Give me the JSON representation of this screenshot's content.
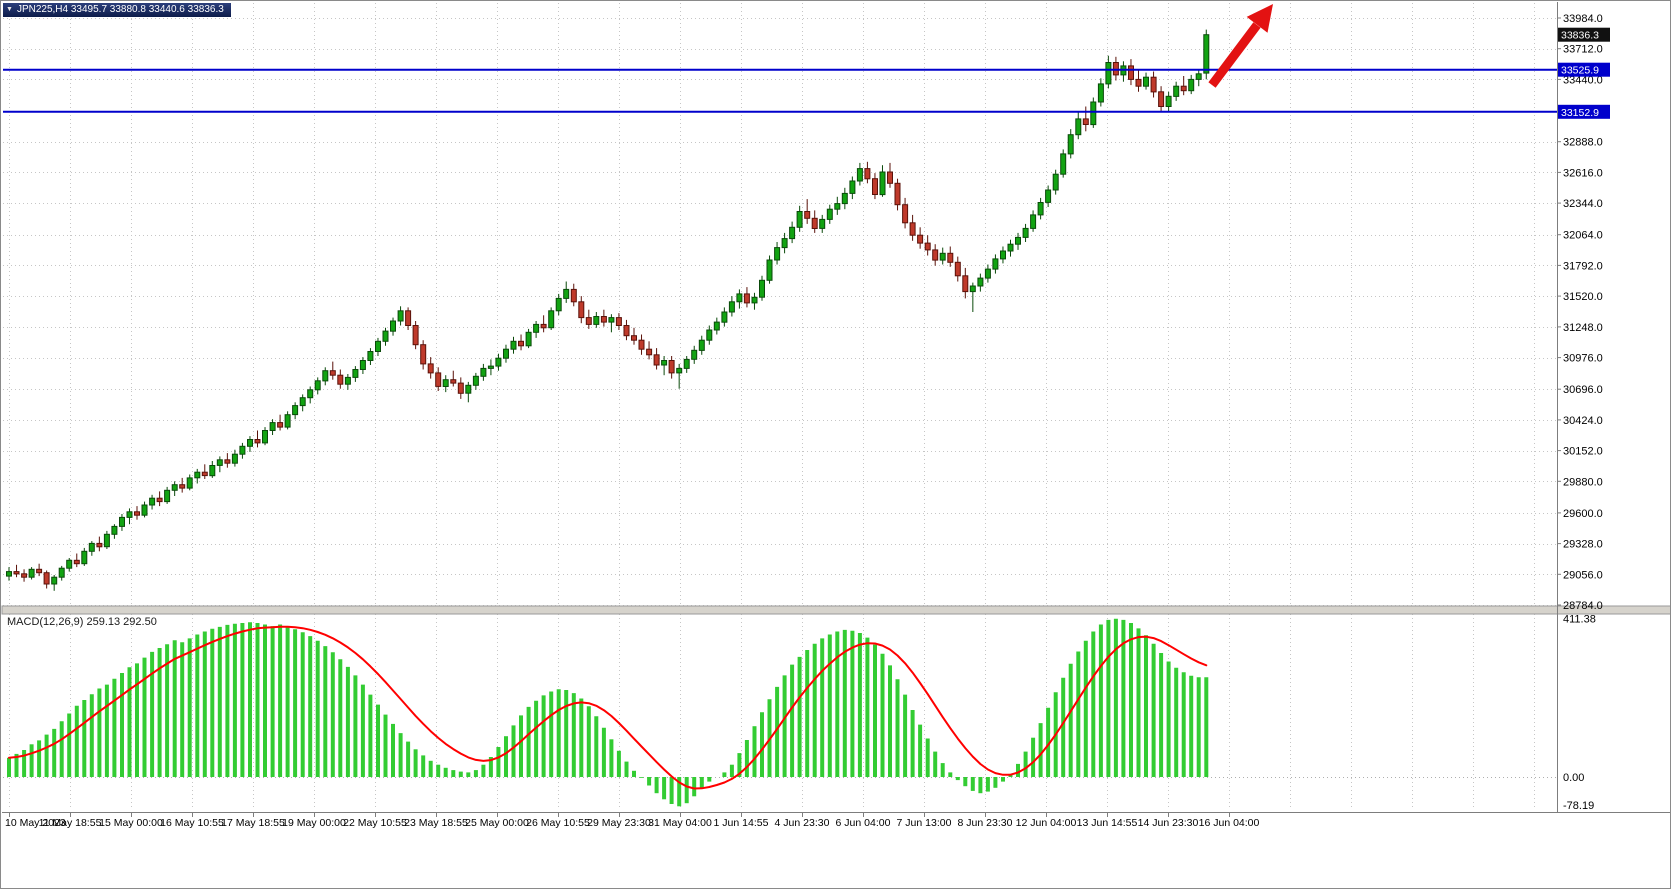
{
  "window": {
    "title": "JPN225,H4 33495.7 33880.8 33440.6 33836.3",
    "symbol": "JPN225,H4",
    "ohlc": {
      "open": "33495.7",
      "high": "33880.8",
      "low": "33440.6",
      "close": "33836.3"
    }
  },
  "colors": {
    "up": "#12a312",
    "up_border": "#0a4a0a",
    "down": "#bf3a2b",
    "down_border": "#5a120a",
    "grid": "#c6c6c6",
    "hline": "#0000cc",
    "macd_hist": "#33cc33",
    "macd_signal": "#ff0000",
    "tag_current_bg": "#111111",
    "tag_line_bg": "#0000cc",
    "arrow": "#e31212"
  },
  "chart_data": {
    "type": "candlestick",
    "title": "JPN225,H4",
    "timeframe": "H4",
    "grid": true,
    "price_axis_range": [
      28784.0,
      33984.0
    ],
    "price_axis_labels": [
      "33984.0",
      "33712.0",
      "33440.0",
      "32888.0",
      "32616.0",
      "32344.0",
      "32064.0",
      "31792.0",
      "31520.0",
      "31248.0",
      "30976.0",
      "30696.0",
      "30424.0",
      "30152.0",
      "29880.0",
      "29600.0",
      "29328.0",
      "29056.0",
      "28784.0"
    ],
    "unlabeled_gridlines": [
      33164
    ],
    "time_labels": [
      "10 May 2023",
      "11 May 18:55",
      "15 May 00:00",
      "16 May 10:55",
      "17 May 18:55",
      "19 May 00:00",
      "22 May 10:55",
      "23 May 18:55",
      "25 May 00:00",
      "26 May 10:55",
      "29 May 23:30",
      "31 May 04:00",
      "1 Jun 14:55",
      "4 Jun 23:30",
      "6 Jun 04:00",
      "7 Jun 13:00",
      "8 Jun 23:30",
      "12 Jun 04:00",
      "13 Jun 14:55",
      "14 Jun 23:30",
      "16 Jun 04:00"
    ],
    "bars_per_label": 8,
    "hlines": [
      {
        "price": 33525.9,
        "label": "33525.9"
      },
      {
        "price": 33152.9,
        "label": "33152.9"
      }
    ],
    "current_price": {
      "value": 33836.3,
      "label": "33836.3"
    },
    "annotation_arrow": {
      "type": "up-right-arrow",
      "color": "#e31212"
    },
    "candles": [
      [
        29040,
        29120,
        29000,
        29080
      ],
      [
        29080,
        29140,
        29030,
        29060
      ],
      [
        29060,
        29100,
        28990,
        29030
      ],
      [
        29030,
        29120,
        29010,
        29100
      ],
      [
        29100,
        29150,
        29040,
        29070
      ],
      [
        29070,
        29090,
        28930,
        28970
      ],
      [
        28970,
        29050,
        28910,
        29030
      ],
      [
        29030,
        29130,
        29000,
        29110
      ],
      [
        29110,
        29200,
        29080,
        29180
      ],
      [
        29180,
        29240,
        29120,
        29150
      ],
      [
        29150,
        29290,
        29130,
        29260
      ],
      [
        29260,
        29350,
        29220,
        29330
      ],
      [
        29330,
        29390,
        29260,
        29300
      ],
      [
        29300,
        29440,
        29280,
        29410
      ],
      [
        29410,
        29500,
        29370,
        29480
      ],
      [
        29480,
        29590,
        29440,
        29560
      ],
      [
        29560,
        29640,
        29500,
        29610
      ],
      [
        29610,
        29660,
        29540,
        29580
      ],
      [
        29580,
        29700,
        29560,
        29670
      ],
      [
        29670,
        29760,
        29630,
        29730
      ],
      [
        29730,
        29790,
        29660,
        29700
      ],
      [
        29700,
        29830,
        29680,
        29800
      ],
      [
        29800,
        29880,
        29750,
        29850
      ],
      [
        29850,
        29910,
        29780,
        29820
      ],
      [
        29820,
        29940,
        29800,
        29910
      ],
      [
        29910,
        29990,
        29860,
        29960
      ],
      [
        29960,
        30030,
        29900,
        29930
      ],
      [
        29930,
        30060,
        29910,
        30020
      ],
      [
        30020,
        30100,
        29960,
        30070
      ],
      [
        30070,
        30130,
        30000,
        30040
      ],
      [
        30040,
        30160,
        30010,
        30120
      ],
      [
        30120,
        30220,
        30080,
        30190
      ],
      [
        30190,
        30280,
        30140,
        30250
      ],
      [
        30250,
        30330,
        30180,
        30220
      ],
      [
        30220,
        30360,
        30200,
        30330
      ],
      [
        30330,
        30430,
        30290,
        30400
      ],
      [
        30400,
        30470,
        30330,
        30360
      ],
      [
        30360,
        30500,
        30340,
        30470
      ],
      [
        30470,
        30580,
        30430,
        30550
      ],
      [
        30550,
        30650,
        30500,
        30620
      ],
      [
        30620,
        30720,
        30570,
        30690
      ],
      [
        30690,
        30800,
        30650,
        30770
      ],
      [
        30770,
        30890,
        30730,
        30860
      ],
      [
        30860,
        30940,
        30780,
        30820
      ],
      [
        30820,
        30870,
        30700,
        30740
      ],
      [
        30740,
        30830,
        30690,
        30800
      ],
      [
        30800,
        30900,
        30760,
        30870
      ],
      [
        30870,
        30980,
        30830,
        30950
      ],
      [
        30950,
        31060,
        30910,
        31030
      ],
      [
        31030,
        31150,
        30990,
        31120
      ],
      [
        31120,
        31240,
        31080,
        31210
      ],
      [
        31210,
        31330,
        31170,
        31300
      ],
      [
        31300,
        31430,
        31260,
        31390
      ],
      [
        31390,
        31420,
        31220,
        31260
      ],
      [
        31260,
        31300,
        31050,
        31090
      ],
      [
        31090,
        31130,
        30870,
        30920
      ],
      [
        30920,
        30980,
        30790,
        30840
      ],
      [
        30840,
        30890,
        30680,
        30720
      ],
      [
        30720,
        30820,
        30670,
        30780
      ],
      [
        30780,
        30860,
        30720,
        30750
      ],
      [
        30750,
        30800,
        30610,
        30660
      ],
      [
        30660,
        30760,
        30580,
        30730
      ],
      [
        30730,
        30840,
        30690,
        30810
      ],
      [
        30810,
        30920,
        30770,
        30880
      ],
      [
        30880,
        30960,
        30820,
        30900
      ],
      [
        30900,
        31010,
        30860,
        30970
      ],
      [
        30970,
        31090,
        30930,
        31050
      ],
      [
        31050,
        31160,
        31010,
        31120
      ],
      [
        31120,
        31180,
        31040,
        31080
      ],
      [
        31080,
        31230,
        31060,
        31200
      ],
      [
        31200,
        31300,
        31150,
        31270
      ],
      [
        31270,
        31350,
        31200,
        31240
      ],
      [
        31240,
        31420,
        31220,
        31390
      ],
      [
        31390,
        31540,
        31350,
        31500
      ],
      [
        31500,
        31650,
        31460,
        31580
      ],
      [
        31580,
        31630,
        31430,
        31470
      ],
      [
        31470,
        31520,
        31280,
        31330
      ],
      [
        31330,
        31400,
        31230,
        31270
      ],
      [
        31270,
        31380,
        31240,
        31340
      ],
      [
        31340,
        31400,
        31250,
        31290
      ],
      [
        31290,
        31360,
        31200,
        31330
      ],
      [
        31330,
        31370,
        31220,
        31260
      ],
      [
        31260,
        31310,
        31130,
        31170
      ],
      [
        31170,
        31240,
        31090,
        31130
      ],
      [
        31130,
        31180,
        31000,
        31050
      ],
      [
        31050,
        31120,
        30960,
        31000
      ],
      [
        31000,
        31060,
        30870,
        30910
      ],
      [
        30910,
        30990,
        30820,
        30950
      ],
      [
        30950,
        30990,
        30790,
        30840
      ],
      [
        30840,
        30920,
        30700,
        30880
      ],
      [
        30880,
        30990,
        30840,
        30960
      ],
      [
        30960,
        31080,
        30920,
        31040
      ],
      [
        31040,
        31170,
        31000,
        31130
      ],
      [
        31130,
        31260,
        31090,
        31220
      ],
      [
        31220,
        31330,
        31180,
        31290
      ],
      [
        31290,
        31420,
        31250,
        31380
      ],
      [
        31380,
        31520,
        31340,
        31470
      ],
      [
        31470,
        31580,
        31410,
        31540
      ],
      [
        31540,
        31600,
        31420,
        31460
      ],
      [
        31460,
        31550,
        31400,
        31510
      ],
      [
        31510,
        31700,
        31480,
        31660
      ],
      [
        31660,
        31880,
        31630,
        31840
      ],
      [
        31840,
        32000,
        31800,
        31950
      ],
      [
        31950,
        32080,
        31900,
        32030
      ],
      [
        32030,
        32180,
        31990,
        32130
      ],
      [
        32130,
        32320,
        32090,
        32270
      ],
      [
        32270,
        32380,
        32160,
        32210
      ],
      [
        32210,
        32280,
        32080,
        32120
      ],
      [
        32120,
        32240,
        32080,
        32200
      ],
      [
        32200,
        32330,
        32160,
        32290
      ],
      [
        32290,
        32400,
        32240,
        32340
      ],
      [
        32340,
        32480,
        32290,
        32430
      ],
      [
        32430,
        32580,
        32380,
        32540
      ],
      [
        32540,
        32700,
        32500,
        32650
      ],
      [
        32650,
        32710,
        32520,
        32560
      ],
      [
        32560,
        32610,
        32380,
        32420
      ],
      [
        32420,
        32680,
        32400,
        32620
      ],
      [
        32620,
        32700,
        32480,
        32520
      ],
      [
        32520,
        32560,
        32280,
        32330
      ],
      [
        32330,
        32390,
        32120,
        32170
      ],
      [
        32170,
        32240,
        32010,
        32060
      ],
      [
        32060,
        32130,
        31940,
        31990
      ],
      [
        31990,
        32060,
        31880,
        31930
      ],
      [
        31930,
        31980,
        31790,
        31840
      ],
      [
        31840,
        31950,
        31800,
        31900
      ],
      [
        31900,
        31960,
        31780,
        31820
      ],
      [
        31820,
        31870,
        31650,
        31700
      ],
      [
        31700,
        31770,
        31500,
        31560
      ],
      [
        31560,
        31640,
        31380,
        31610
      ],
      [
        31610,
        31720,
        31560,
        31680
      ],
      [
        31680,
        31800,
        31640,
        31760
      ],
      [
        31760,
        31890,
        31720,
        31850
      ],
      [
        31850,
        31960,
        31810,
        31920
      ],
      [
        31920,
        32020,
        31870,
        31980
      ],
      [
        31980,
        32080,
        31930,
        32040
      ],
      [
        32040,
        32160,
        32000,
        32120
      ],
      [
        32120,
        32280,
        32090,
        32240
      ],
      [
        32240,
        32390,
        32200,
        32350
      ],
      [
        32350,
        32500,
        32310,
        32460
      ],
      [
        32460,
        32640,
        32420,
        32600
      ],
      [
        32600,
        32820,
        32570,
        32780
      ],
      [
        32780,
        33000,
        32740,
        32950
      ],
      [
        32950,
        33150,
        32910,
        33090
      ],
      [
        33090,
        33200,
        32980,
        33040
      ],
      [
        33040,
        33280,
        33010,
        33240
      ],
      [
        33240,
        33450,
        33200,
        33400
      ],
      [
        33400,
        33650,
        33360,
        33590
      ],
      [
        33590,
        33640,
        33430,
        33480
      ],
      [
        33480,
        33600,
        33420,
        33560
      ],
      [
        33560,
        33620,
        33390,
        33440
      ],
      [
        33440,
        33530,
        33330,
        33380
      ],
      [
        33380,
        33500,
        33350,
        33460
      ],
      [
        33460,
        33510,
        33280,
        33330
      ],
      [
        33330,
        33380,
        33150,
        33200
      ],
      [
        33200,
        33330,
        33160,
        33290
      ],
      [
        33290,
        33420,
        33250,
        33380
      ],
      [
        33380,
        33470,
        33300,
        33340
      ],
      [
        33340,
        33480,
        33310,
        33440
      ],
      [
        33440,
        33530,
        33380,
        33490
      ],
      [
        33495.7,
        33880.8,
        33440.6,
        33836.3
      ]
    ],
    "macd": {
      "label": "MACD(12,26,9) 259.13 292.50",
      "main_value": "259.13",
      "signal_value": "292.50",
      "signal_period": 9,
      "axis_labels": [
        "411.38",
        "0.00",
        "-78.19"
      ],
      "range": [
        -78.19,
        411.38
      ],
      "values": [
        50,
        60,
        70,
        85,
        95,
        110,
        125,
        145,
        165,
        185,
        200,
        215,
        230,
        240,
        255,
        270,
        285,
        295,
        310,
        325,
        335,
        345,
        355,
        350,
        360,
        370,
        378,
        385,
        390,
        395,
        398,
        400,
        402,
        400,
        396,
        392,
        396,
        390,
        384,
        376,
        366,
        354,
        340,
        324,
        306,
        286,
        264,
        240,
        214,
        188,
        162,
        138,
        114,
        92,
        72,
        56,
        42,
        32,
        24,
        18,
        14,
        12,
        18,
        32,
        52,
        78,
        106,
        134,
        160,
        182,
        198,
        212,
        222,
        228,
        226,
        218,
        204,
        184,
        158,
        128,
        98,
        68,
        40,
        16,
        -2,
        -22,
        -42,
        -58,
        -70,
        -76,
        -68,
        -50,
        -28,
        -12,
        0,
        12,
        32,
        62,
        96,
        132,
        168,
        202,
        234,
        264,
        292,
        312,
        330,
        346,
        360,
        370,
        378,
        382,
        380,
        374,
        362,
        344,
        320,
        290,
        254,
        214,
        174,
        136,
        100,
        66,
        36,
        12,
        -8,
        -24,
        -36,
        -42,
        -38,
        -28,
        -12,
        8,
        34,
        66,
        102,
        140,
        180,
        220,
        258,
        294,
        326,
        354,
        378,
        396,
        408,
        411,
        408,
        400,
        386,
        368,
        346,
        322,
        300,
        284,
        272,
        263,
        259,
        259.13
      ]
    }
  }
}
